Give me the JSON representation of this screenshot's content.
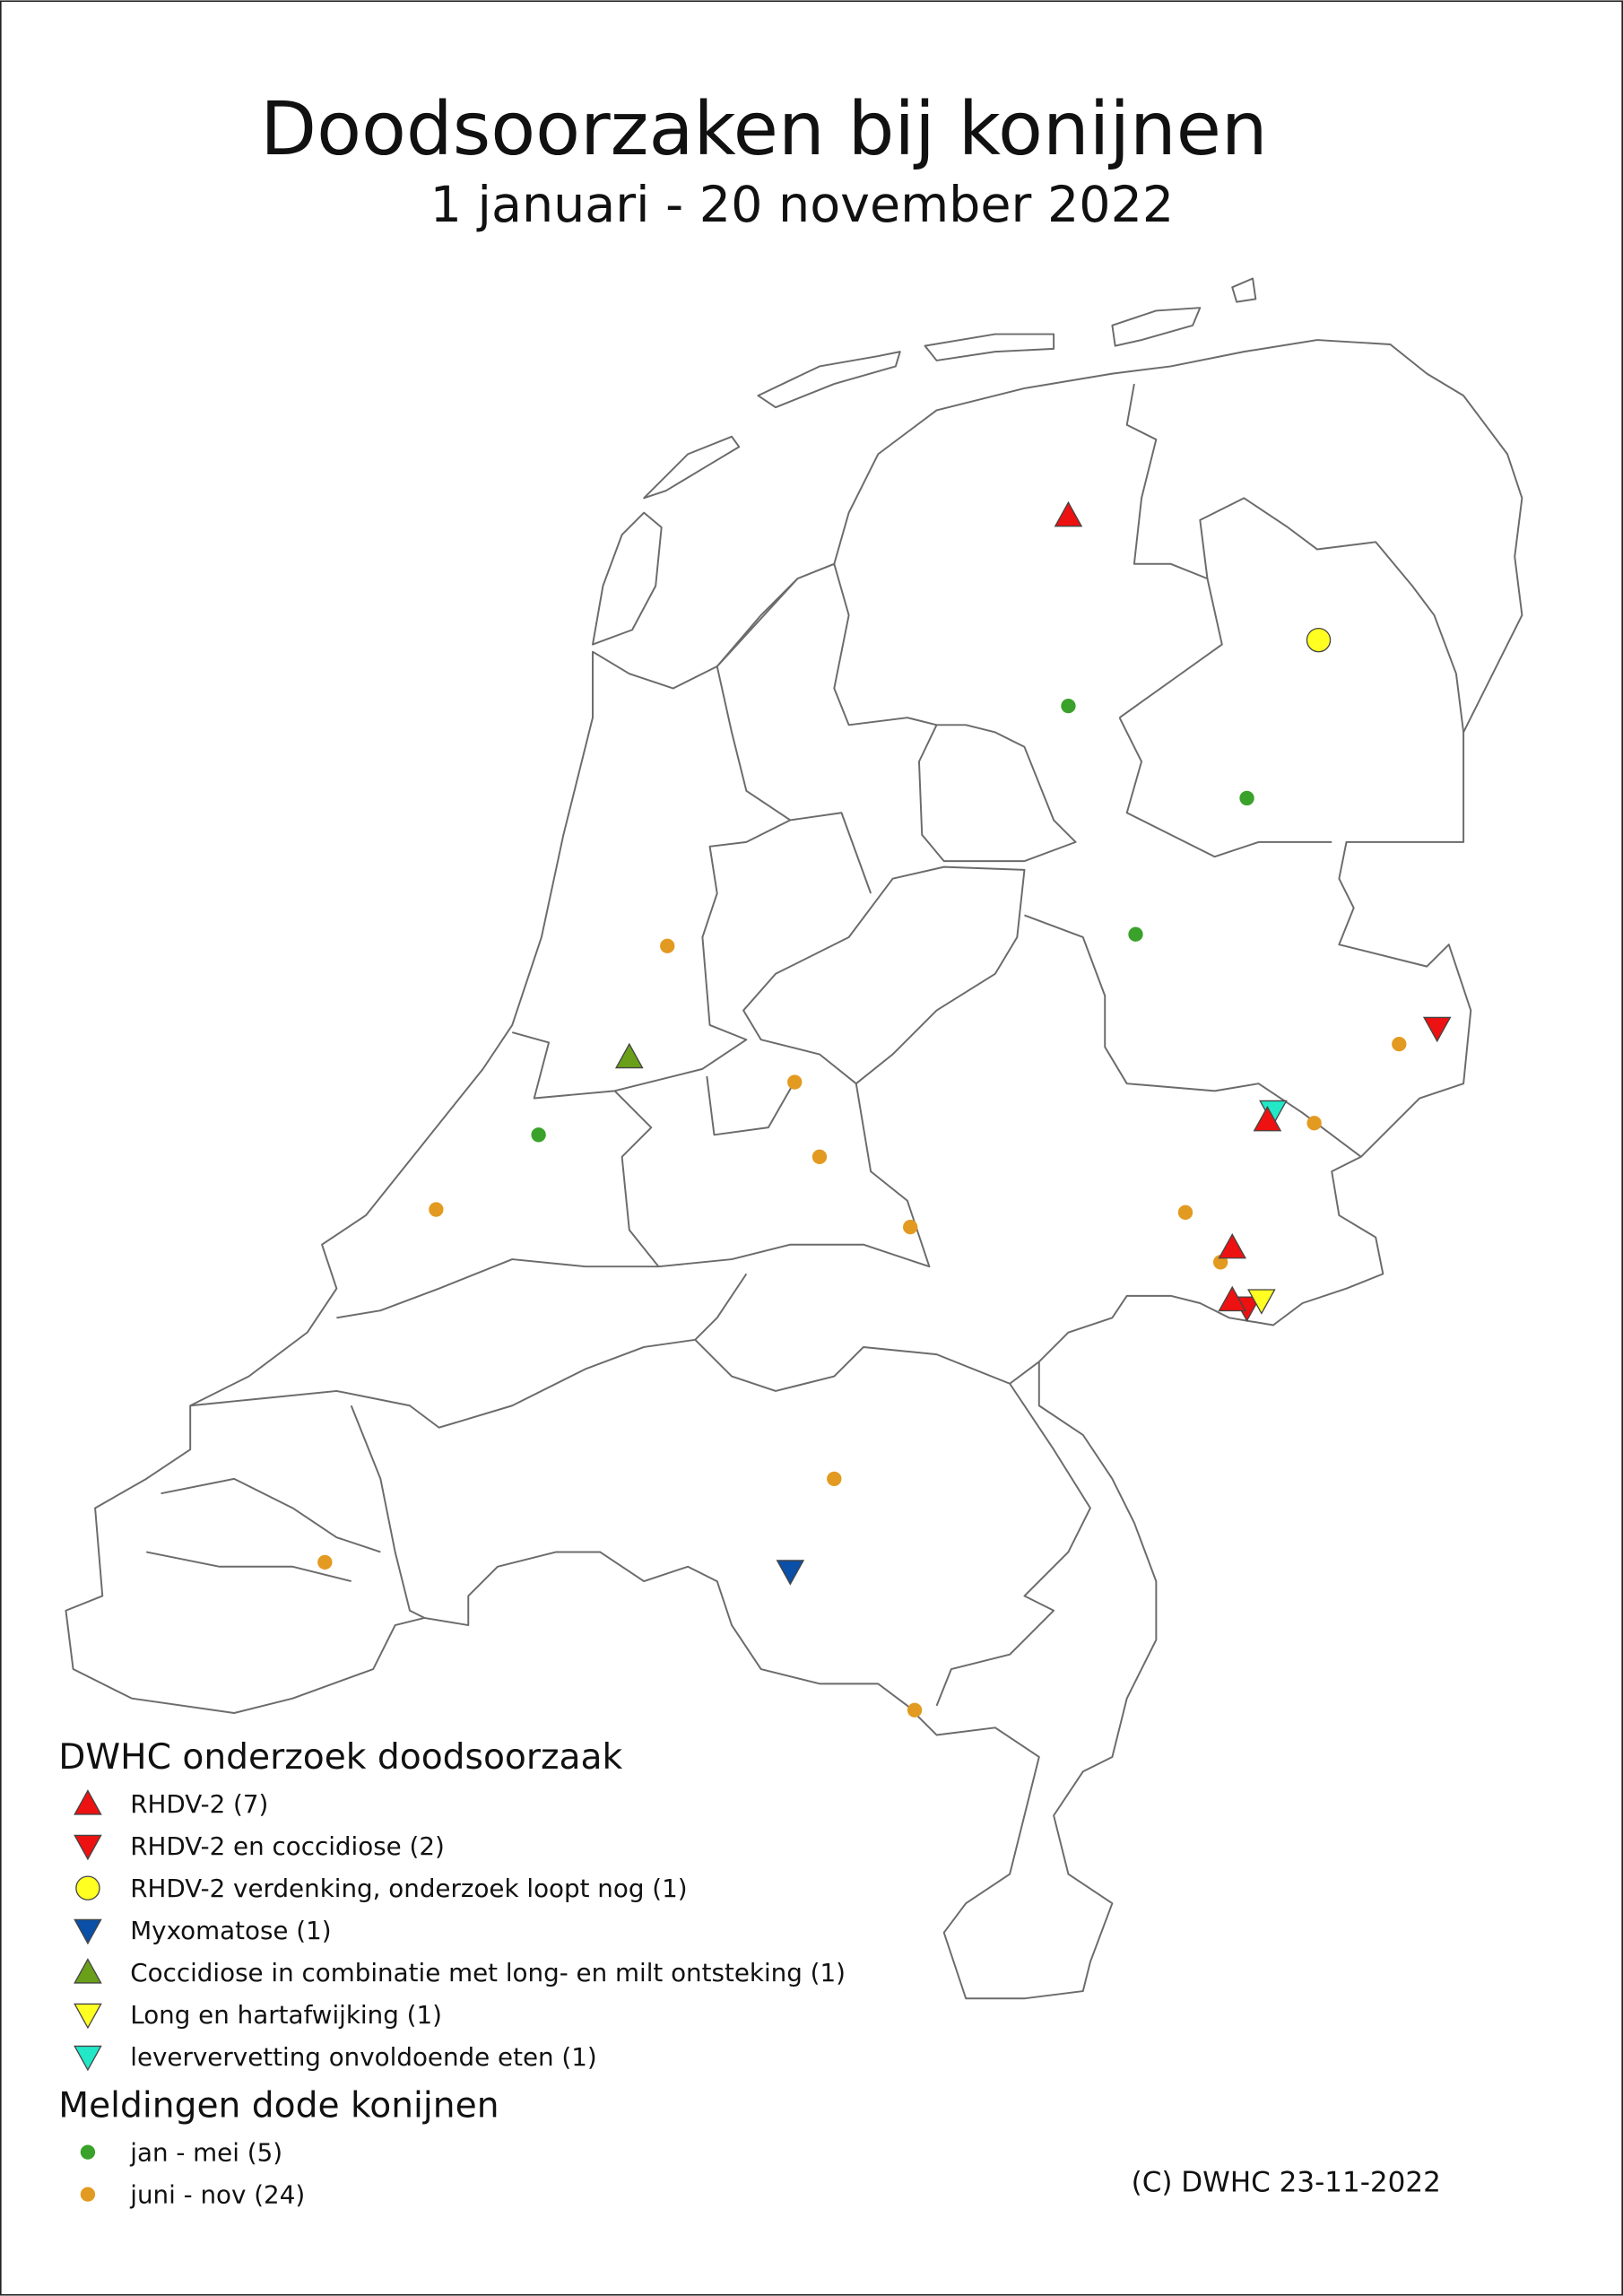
{
  "header": {
    "title": "Doodsoorzaken bij konijnen",
    "subtitle": "1 januari - 20 november 2022"
  },
  "legend": {
    "sections": [
      {
        "title": "DWHC onderzoek doodsoorzaak",
        "items": [
          "RHDV-2 (7)",
          "RHDV-2 en coccidiose (2)",
          "RHDV-2 verdenking, onderzoek loopt nog (1)",
          "Myxomatose (1)",
          "Coccidiose in combinatie met long- en milt ontsteking (1)",
          "Long en hartafwijking (1)",
          "leververvetting onvoldoende eten (1)"
        ]
      },
      {
        "title": "Meldingen dode konijnen",
        "items": [
          "jan - mei (5)",
          "juni - nov (24)"
        ]
      }
    ]
  },
  "footer": {
    "credit": "(C) DWHC 23-11-2022"
  }
}
